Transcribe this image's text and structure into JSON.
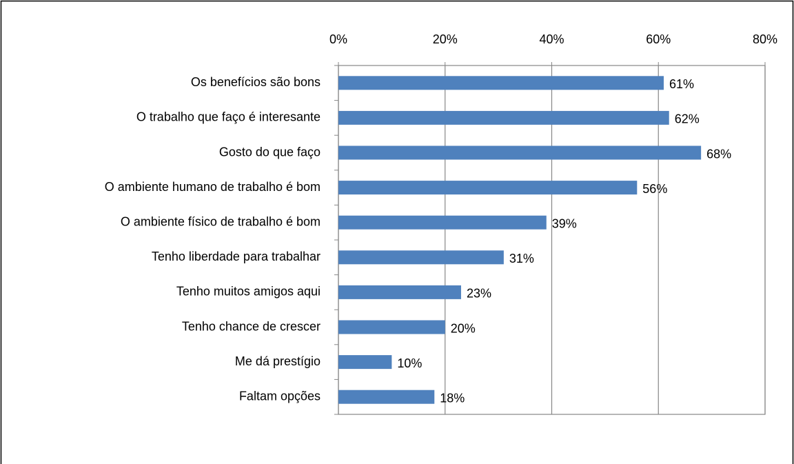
{
  "chart_data": {
    "type": "bar",
    "orientation": "horizontal",
    "categories": [
      "Os benefícios são bons",
      "O trabalho que faço é interesante",
      "Gosto do que faço",
      "O ambiente humano de trabalho é bom",
      "O ambiente físico de trabalho é bom",
      "Tenho liberdade para trabalhar",
      "Tenho muitos amigos aqui",
      "Tenho chance de crescer",
      "Me dá prestígio",
      "Faltam opções"
    ],
    "values": [
      61,
      62,
      68,
      56,
      39,
      31,
      23,
      20,
      10,
      18
    ],
    "value_labels": [
      "61%",
      "62%",
      "68%",
      "56%",
      "39%",
      "31%",
      "23%",
      "20%",
      "10%",
      "18%"
    ],
    "color": "#4f81bd",
    "xlim": [
      0,
      80
    ],
    "xticks": [
      {
        "value": 0,
        "label": "0%"
      },
      {
        "value": 20,
        "label": "20%"
      },
      {
        "value": 40,
        "label": "40%"
      },
      {
        "value": 60,
        "label": "60%"
      },
      {
        "value": 80,
        "label": "80%"
      }
    ],
    "grid": true
  }
}
